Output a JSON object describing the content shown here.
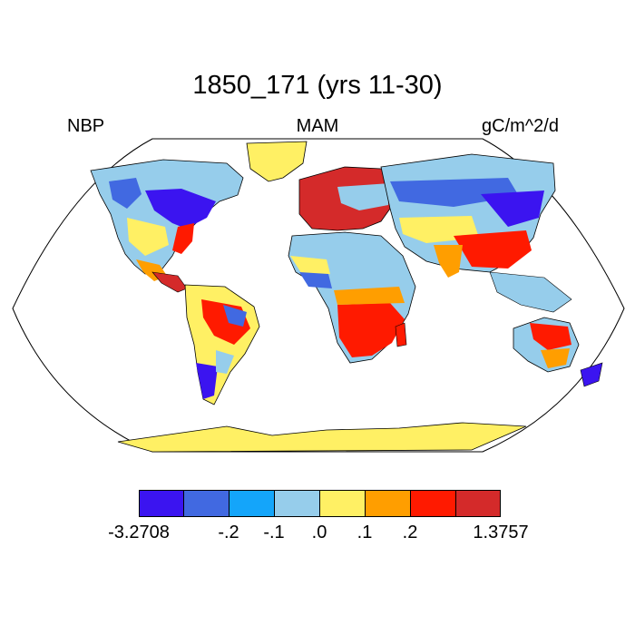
{
  "title": "1850_171 (yrs 11-30)",
  "left_label": "NBP",
  "center_label": "MAM",
  "right_label": "gC/m^2/d",
  "colorbar": {
    "colors": [
      "#3b14f0",
      "#4169e1",
      "#14a5fa",
      "#96cdeb",
      "#fff064",
      "#ff9e00",
      "#ff1a00",
      "#d42a2a"
    ],
    "labels": [
      "-3.2708",
      "-.2",
      "-.1",
      ".0",
      ".1",
      ".2",
      "1.3757"
    ]
  },
  "map": {
    "ocean": "#ffffff",
    "coastline": "#000000",
    "projection": "Robinson"
  }
}
